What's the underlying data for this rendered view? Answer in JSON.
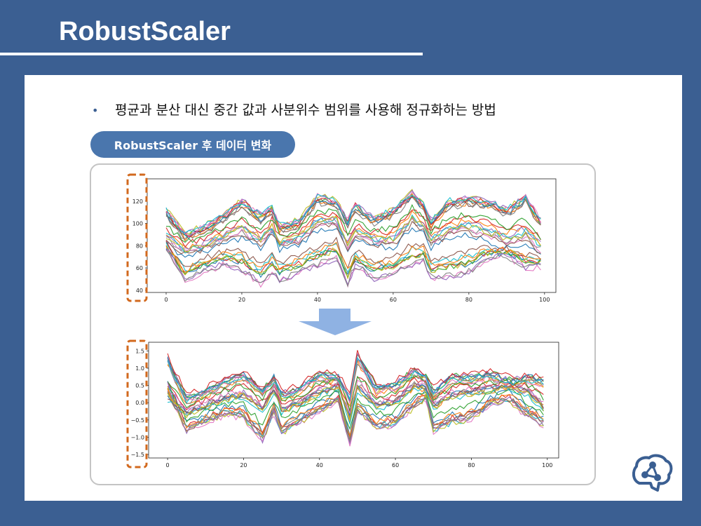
{
  "slide": {
    "title": "RobustScaler",
    "bullet": "평균과 분산 대신 중간 값과 사분위수 범위를 사용해 정규화하는 방법",
    "section_label": "RobustScaler 후 데이터 변화"
  },
  "colors": {
    "background": "#3b5f92",
    "panel": "#ffffff",
    "pill": "#4a76ad",
    "highlight_box": "#d2691e",
    "arrow": "#8fb2e3"
  },
  "icons": {
    "bullet": "bullet-dot-icon",
    "arrow": "down-arrow-icon",
    "logo": "brain-network-logo-icon"
  },
  "chart_data": [
    {
      "type": "line",
      "title": "",
      "xlabel": "",
      "ylabel": "",
      "xlim": [
        -5,
        103
      ],
      "ylim": [
        38,
        140
      ],
      "xticks": [
        0,
        20,
        40,
        60,
        80,
        100
      ],
      "yticks": [
        40,
        60,
        80,
        100,
        120
      ],
      "grid": false,
      "legend": "none",
      "series_count": 30,
      "description_values": {
        "x": [
          0,
          5,
          10,
          15,
          20,
          25,
          28,
          30,
          35,
          40,
          45,
          48,
          50,
          55,
          60,
          65,
          68,
          70,
          75,
          80,
          85,
          90,
          95,
          99
        ],
        "low_band": [
          78,
          48,
          57,
          63,
          58,
          45,
          55,
          48,
          55,
          62,
          68,
          45,
          62,
          50,
          55,
          62,
          65,
          50,
          52,
          55,
          68,
          72,
          60,
          62
        ],
        "mid_band": [
          82,
          72,
          76,
          82,
          88,
          78,
          92,
          78,
          82,
          95,
          98,
          75,
          85,
          80,
          78,
          98,
          92,
          80,
          88,
          90,
          85,
          78,
          82,
          72
        ],
        "high_band": [
          110,
          88,
          95,
          105,
          118,
          105,
          112,
          96,
          100,
          122,
          118,
          100,
          115,
          102,
          110,
          125,
          115,
          100,
          118,
          120,
          118,
          110,
          122,
          100
        ]
      }
    },
    {
      "type": "line",
      "title": "",
      "xlabel": "",
      "ylabel": "",
      "xlim": [
        -5,
        103
      ],
      "ylim": [
        -1.6,
        1.75
      ],
      "xticks": [
        0,
        20,
        40,
        60,
        80,
        100
      ],
      "yticks": [
        -1.5,
        -1.0,
        -0.5,
        0.0,
        0.5,
        1.0,
        1.5
      ],
      "grid": false,
      "legend": "none",
      "series_count": 30,
      "description_values": {
        "x": [
          0,
          5,
          10,
          15,
          20,
          25,
          28,
          30,
          35,
          40,
          45,
          48,
          50,
          55,
          60,
          65,
          68,
          70,
          75,
          80,
          85,
          90,
          95,
          99
        ],
        "low_band": [
          0.6,
          -0.8,
          -0.5,
          -0.3,
          -0.4,
          -1.1,
          -0.3,
          -0.9,
          -0.5,
          -0.2,
          0.1,
          -1.2,
          -0.2,
          -0.7,
          -0.6,
          -0.1,
          0.2,
          -0.8,
          -0.6,
          -0.5,
          0.0,
          0.1,
          -0.4,
          -0.6
        ],
        "mid_band": [
          0.1,
          -0.3,
          -0.1,
          0.1,
          0.2,
          -0.2,
          0.4,
          -0.2,
          0.0,
          0.3,
          0.5,
          -0.5,
          0.4,
          -0.1,
          0.0,
          0.5,
          0.4,
          -0.1,
          0.2,
          0.3,
          0.4,
          0.5,
          0.3,
          -0.2
        ],
        "high_band": [
          1.2,
          0.1,
          0.3,
          0.6,
          0.8,
          0.3,
          0.7,
          0.2,
          0.4,
          0.8,
          0.7,
          0.1,
          1.3,
          0.4,
          0.5,
          0.9,
          0.7,
          0.3,
          0.7,
          0.7,
          0.8,
          0.6,
          0.7,
          0.6
        ]
      }
    }
  ]
}
